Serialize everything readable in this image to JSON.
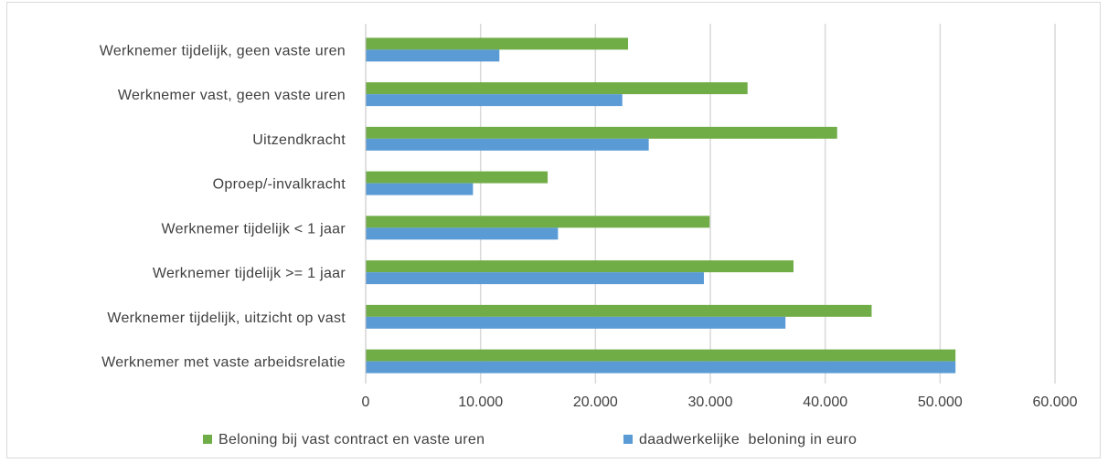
{
  "chart_data": {
    "type": "bar",
    "orientation": "horizontal",
    "title": "",
    "xlabel": "",
    "ylabel": "",
    "categories": [
      "Werknemer tijdelijk, geen vaste uren",
      "Werknemer vast, geen vaste uren",
      "Uitzendkracht",
      "Oproep/-invalkracht",
      "Werknemer tijdelijk < 1 jaar",
      "Werknemer tijdelijk >= 1 jaar",
      "Werknemer tijdelijk, uitzicht op vast",
      "Werknemer met vaste arbeidsrelatie"
    ],
    "series": [
      {
        "name": "Beloning bij vast contract en vaste uren",
        "color": "#70ad47",
        "values": [
          22800,
          33200,
          41000,
          15800,
          29900,
          37200,
          44000,
          51300
        ]
      },
      {
        "name": "daadwerkelijke  beloning in euro",
        "color": "#5b9bd5",
        "values": [
          11600,
          22300,
          24600,
          9300,
          16700,
          29400,
          36500,
          51300
        ]
      }
    ],
    "xlim": [
      0,
      60000
    ],
    "xticks": [
      0,
      10000,
      20000,
      30000,
      40000,
      50000,
      60000
    ],
    "xtick_labels": [
      "0",
      "10.000",
      "20.000",
      "30.000",
      "40.000",
      "50.000",
      "60.000"
    ],
    "grid": true,
    "legend_position": "bottom"
  }
}
